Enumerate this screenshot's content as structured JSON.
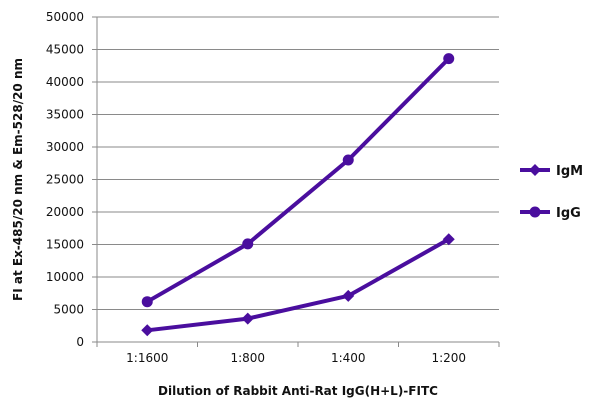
{
  "chart_data": {
    "type": "line",
    "title": "",
    "xlabel": "Dilution of Rabbit Anti-Rat IgG(H+L)-FITC",
    "ylabel": "FI at Ex-485/20 nm & Em-528/20 nm",
    "categories": [
      "1:1600",
      "1:800",
      "1:400",
      "1:200"
    ],
    "ylim": [
      0,
      50000
    ],
    "yticks": [
      0,
      5000,
      10000,
      15000,
      20000,
      25000,
      30000,
      35000,
      40000,
      45000,
      50000
    ],
    "grid": true,
    "legend_position": "right",
    "series": [
      {
        "name": "IgM",
        "marker": "diamond",
        "color": "#4a0e9e",
        "values": [
          1800,
          3600,
          7100,
          15800
        ]
      },
      {
        "name": "IgG",
        "marker": "circle",
        "color": "#4a0e9e",
        "values": [
          6200,
          15100,
          28000,
          43600
        ]
      }
    ]
  }
}
